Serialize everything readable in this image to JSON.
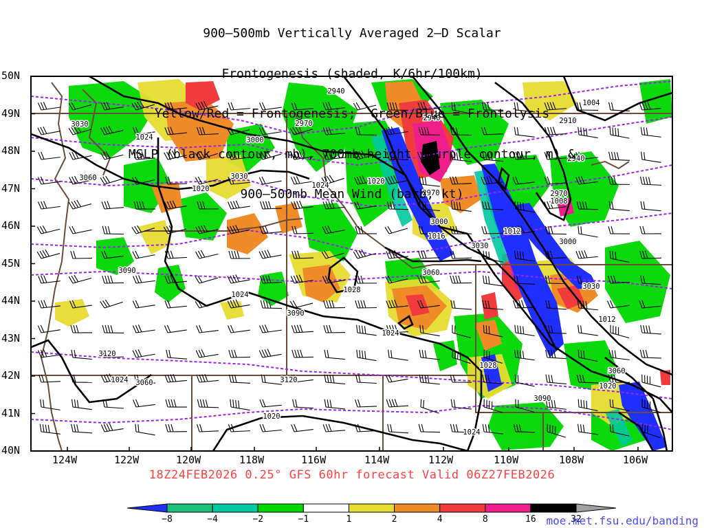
{
  "title_lines": [
    "900–500mb Vertically Averaged 2–D Scalar",
    "Frontogenesis (shaded, K/6hr/100km)",
    "Yellow/Red = Frontogenesis;  Green/Blue = Frontolysis",
    "MSLP (black contour, mb), 700mb height (purple contour, m) &",
    "900–500mb Mean Wind (barb, kt)"
  ],
  "lat_labels": [
    "50N",
    "49N",
    "48N",
    "47N",
    "46N",
    "45N",
    "44N",
    "43N",
    "42N",
    "41N",
    "40N"
  ],
  "lon_labels": [
    "124W",
    "122W",
    "120W",
    "118W",
    "116W",
    "114W",
    "112W",
    "110W",
    "108W",
    "106W"
  ],
  "footer": "18Z24FEB2026 0.25° GFS 60hr forecast Valid 06Z27FEB2026",
  "credit": "moe.met.fsu.edu/banding",
  "colorbar": {
    "labels": [
      "−8",
      "−4",
      "−2",
      "−1",
      "1",
      "2",
      "4",
      "8",
      "16",
      "32"
    ],
    "colors": [
      "#1f2fff",
      "#1cbf7a",
      "#00c8a0",
      "#00d800",
      "#ffffff",
      "#e6dc32",
      "#f08c28",
      "#f03c3c",
      "#f01e8c",
      "#000000",
      "#a0a0a0"
    ]
  },
  "mslp_labels": [
    "1024",
    "1020",
    "1020",
    "1024",
    "1016",
    "1012",
    "1012",
    "1008",
    "1004",
    "1024",
    "1028",
    "1024",
    "1024",
    "1028",
    "1020",
    "1024",
    "1020"
  ],
  "height_labels": [
    "3030",
    "3060",
    "3030",
    "3000",
    "2970",
    "2940",
    "2940",
    "2970",
    "3000",
    "3030",
    "3060",
    "3090",
    "3090",
    "3120",
    "3120",
    "3060",
    "2940",
    "2910",
    "3000",
    "2970",
    "3030",
    "3060",
    "3090"
  ]
}
